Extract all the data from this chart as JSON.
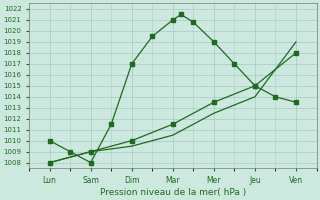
{
  "xlabel": "Pression niveau de la mer( hPa )",
  "xtick_labels": [
    "Lun",
    "Sam",
    "Dim",
    "Mar",
    "Mer",
    "Jeu",
    "Ven"
  ],
  "ylim": [
    1007.5,
    1022.5
  ],
  "ytick_min": 1008,
  "ytick_max": 1022,
  "background_color": "#cce8df",
  "grid_color": "#aacfc5",
  "line_color": "#1e6b1e",
  "line1_x": [
    0,
    0.5,
    1,
    1.5,
    2,
    2.5,
    3,
    3.2,
    3.5,
    4,
    4.5,
    5,
    5.5,
    6
  ],
  "line1_y": [
    1010,
    1009,
    1008,
    1011.5,
    1017,
    1019.5,
    1021,
    1021.5,
    1020.8,
    1019,
    1017,
    1015,
    1014,
    1013.5
  ],
  "line2_x": [
    0,
    1,
    2,
    3,
    4,
    5,
    6
  ],
  "line2_y": [
    1008,
    1009,
    1010,
    1011.5,
    1013.5,
    1015,
    1018
  ],
  "line3_x": [
    0,
    1,
    2,
    3,
    4,
    5,
    6
  ],
  "line3_y": [
    1008,
    1009,
    1009.5,
    1010.5,
    1012.5,
    1014,
    1019
  ]
}
